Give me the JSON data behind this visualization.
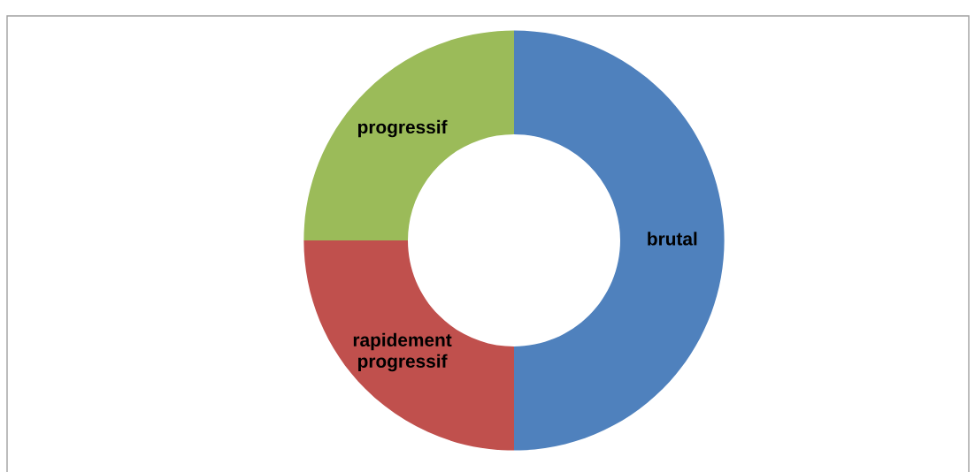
{
  "chart_data": {
    "type": "donut",
    "categories": [
      "brutal",
      "rapidement\nprogressif",
      "progressif"
    ],
    "values": [
      50,
      25,
      25
    ],
    "colors": [
      "#4f81bd",
      "#c0504d",
      "#9bbb59"
    ],
    "legend": false
  }
}
